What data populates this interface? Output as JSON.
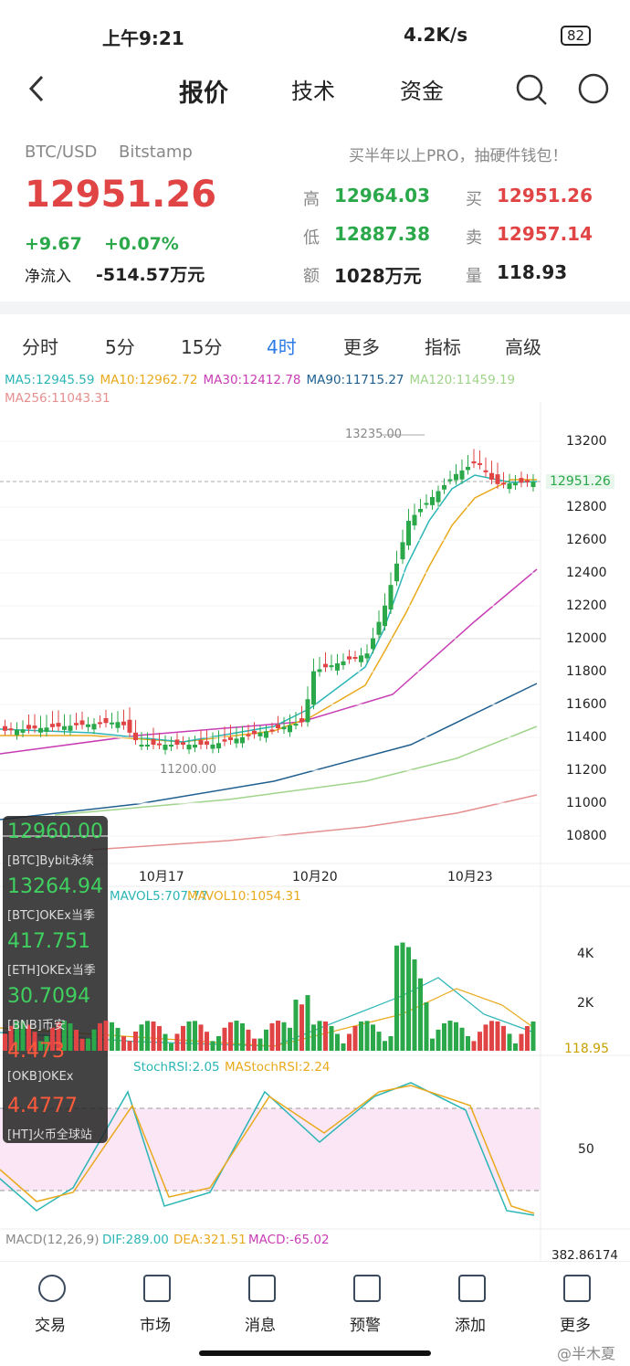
{
  "status": {
    "time": "上午9:21",
    "speed": "4.2K/s",
    "battery": "82"
  },
  "nav": {
    "tabs": [
      "报价",
      "技术",
      "资金"
    ]
  },
  "quote": {
    "pair": "BTC/USD",
    "exchange": "Bitstamp",
    "promo": "买半年以上PRO，抽硬件钱包！",
    "price": "12951.26",
    "change": "+9.67",
    "percent": "+0.07%",
    "inflow_label": "净流入",
    "inflow": "-514.57万元",
    "stats": [
      {
        "label": "高",
        "value": "12964.03"
      },
      {
        "label": "低",
        "value": "12887.38"
      },
      {
        "label": "额",
        "value": "1028万元"
      },
      {
        "label": "买",
        "value": "12951.26"
      },
      {
        "label": "卖",
        "value": "12957.14"
      },
      {
        "label": "量",
        "value": "118.93"
      }
    ]
  },
  "periods": [
    "分时",
    "5分",
    "15分",
    "4时",
    "更多",
    "指标",
    "高级"
  ],
  "ma_legend": [
    {
      "text": "MA5:12945.59",
      "color": "#2bb5b5"
    },
    {
      "text": "MA10:12962.72",
      "color": "#e9a91c"
    },
    {
      "text": "MA30:12412.78",
      "color": "#c83cb4"
    },
    {
      "text": "MA90:11715.27",
      "color": "#1f5f8f"
    },
    {
      "text": "MA120:11459.19",
      "color": "#9fd48a"
    },
    {
      "text": "MA256:11043.31",
      "color": "#e58f8f"
    }
  ],
  "price_axis": [
    "13200",
    "12800",
    "12600",
    "12400",
    "12200",
    "12000",
    "11800",
    "11600",
    "11400",
    "11200",
    "11000",
    "10800"
  ],
  "current_price": "12951.26",
  "high_marker": "13235.00",
  "low_marker": "11200.00",
  "dates": [
    "10月17",
    "10月20",
    "10月23"
  ],
  "volume": {
    "legend": [
      "MAVOL5:707.77",
      "MAVOL10:1054.31"
    ],
    "axis": [
      "4K",
      "2K"
    ],
    "last": "118.95"
  },
  "stoch": {
    "legend": [
      "StochRSI:2.05",
      "MAStochRSI:2.24"
    ],
    "axis": "50"
  },
  "macd": {
    "legend": [
      "MACD(12,26,9)",
      "DIF:289.00",
      "DEA:321.51",
      "MACD:-65.02"
    ],
    "axis": "382.86174"
  },
  "overlay": [
    {
      "price": "12960.00",
      "name": "[BTC]Bybit永续"
    },
    {
      "price": "13264.94",
      "name": "[BTC]OKEx当季"
    },
    {
      "price": "417.751",
      "name": "[ETH]OKEx当季"
    },
    {
      "price": "30.7094",
      "name": "[BNB]币安"
    },
    {
      "price": "4.473",
      "name": "[OKB]OKEx"
    },
    {
      "price": "4.4777",
      "name": "[HT]火币全球站"
    }
  ],
  "bottom_nav": [
    "交易",
    "市场",
    "消息",
    "预警",
    "添加",
    "更多"
  ],
  "watermark": "@半木夏"
}
